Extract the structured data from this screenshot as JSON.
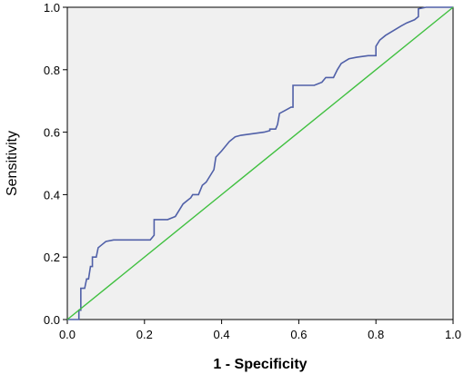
{
  "chart_data": {
    "type": "line",
    "title": "",
    "xlabel": "1 - Specificity",
    "ylabel": "Sensitivity",
    "xlim": [
      0.0,
      1.0
    ],
    "ylim": [
      0.0,
      1.0
    ],
    "x_ticks": [
      "0.0",
      "0.2",
      "0.4",
      "0.6",
      "0.8",
      "1.0"
    ],
    "y_ticks": [
      "0.0",
      "0.2",
      "0.4",
      "0.6",
      "0.8",
      "1.0"
    ],
    "grid": false,
    "legend": "none",
    "plot_background": "#f0f0f0",
    "series": [
      {
        "role": "roc-curve",
        "color": "#5060a8",
        "step": true,
        "points": [
          [
            0.0,
            0.0
          ],
          [
            0.03,
            0.0
          ],
          [
            0.03,
            0.03
          ],
          [
            0.035,
            0.03
          ],
          [
            0.035,
            0.1
          ],
          [
            0.045,
            0.1
          ],
          [
            0.05,
            0.13
          ],
          [
            0.055,
            0.13
          ],
          [
            0.06,
            0.17
          ],
          [
            0.065,
            0.17
          ],
          [
            0.065,
            0.2
          ],
          [
            0.075,
            0.2
          ],
          [
            0.08,
            0.23
          ],
          [
            0.09,
            0.24
          ],
          [
            0.1,
            0.25
          ],
          [
            0.12,
            0.255
          ],
          [
            0.215,
            0.255
          ],
          [
            0.225,
            0.27
          ],
          [
            0.225,
            0.32
          ],
          [
            0.26,
            0.32
          ],
          [
            0.28,
            0.33
          ],
          [
            0.29,
            0.35
          ],
          [
            0.3,
            0.37
          ],
          [
            0.31,
            0.38
          ],
          [
            0.32,
            0.39
          ],
          [
            0.325,
            0.4
          ],
          [
            0.34,
            0.4
          ],
          [
            0.35,
            0.43
          ],
          [
            0.36,
            0.44
          ],
          [
            0.37,
            0.46
          ],
          [
            0.38,
            0.48
          ],
          [
            0.385,
            0.52
          ],
          [
            0.4,
            0.54
          ],
          [
            0.42,
            0.57
          ],
          [
            0.435,
            0.585
          ],
          [
            0.45,
            0.59
          ],
          [
            0.48,
            0.595
          ],
          [
            0.51,
            0.6
          ],
          [
            0.525,
            0.605
          ],
          [
            0.525,
            0.61
          ],
          [
            0.54,
            0.61
          ],
          [
            0.545,
            0.625
          ],
          [
            0.55,
            0.66
          ],
          [
            0.565,
            0.67
          ],
          [
            0.58,
            0.68
          ],
          [
            0.585,
            0.68
          ],
          [
            0.585,
            0.75
          ],
          [
            0.64,
            0.75
          ],
          [
            0.66,
            0.76
          ],
          [
            0.67,
            0.775
          ],
          [
            0.69,
            0.775
          ],
          [
            0.7,
            0.8
          ],
          [
            0.71,
            0.82
          ],
          [
            0.73,
            0.835
          ],
          [
            0.75,
            0.84
          ],
          [
            0.78,
            0.845
          ],
          [
            0.8,
            0.845
          ],
          [
            0.8,
            0.875
          ],
          [
            0.81,
            0.895
          ],
          [
            0.825,
            0.91
          ],
          [
            0.845,
            0.925
          ],
          [
            0.865,
            0.94
          ],
          [
            0.88,
            0.95
          ],
          [
            0.9,
            0.96
          ],
          [
            0.91,
            0.97
          ],
          [
            0.91,
            0.995
          ],
          [
            0.93,
            1.0
          ],
          [
            1.0,
            1.0
          ]
        ]
      },
      {
        "role": "reference-line",
        "color": "#40c040",
        "step": false,
        "points": [
          [
            0.0,
            0.0
          ],
          [
            1.0,
            1.0
          ]
        ]
      }
    ]
  }
}
